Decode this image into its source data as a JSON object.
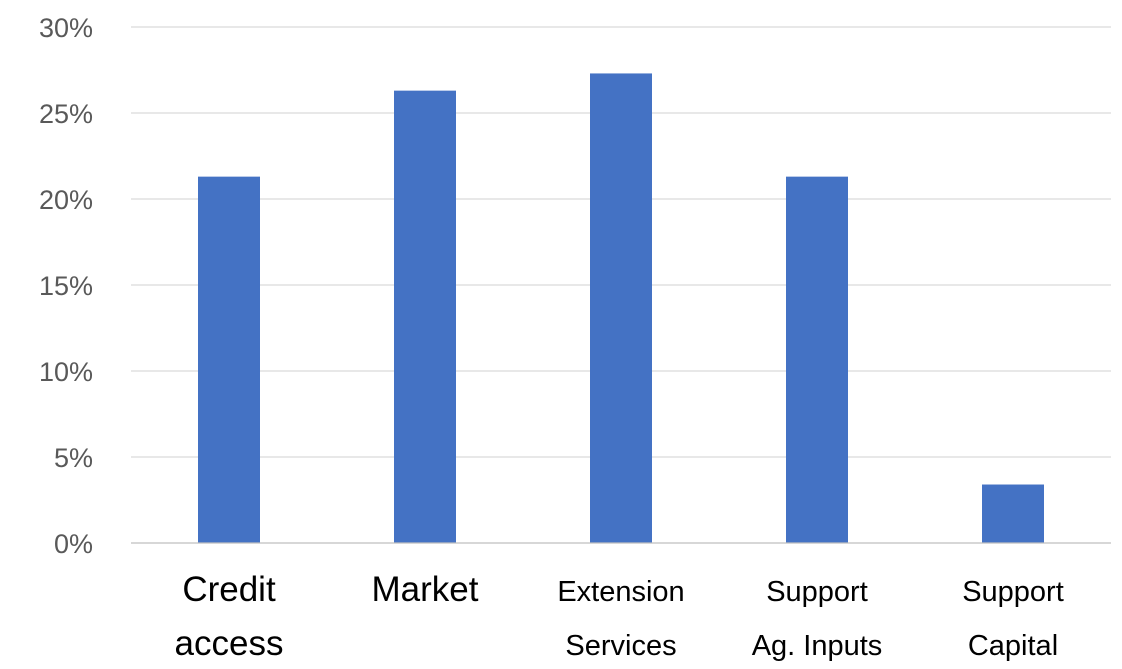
{
  "chart_data": {
    "type": "bar",
    "categories": [
      [
        "Credit",
        "access"
      ],
      [
        "Market"
      ],
      [
        "Extension",
        "Services"
      ],
      [
        "Support",
        "Ag. Inputs"
      ],
      [
        "Support",
        "Capital"
      ]
    ],
    "values": [
      21.3,
      26.3,
      27.3,
      21.3,
      3.4
    ],
    "ylim": [
      0,
      30
    ],
    "yticks": [
      "0%",
      "5%",
      "10%",
      "15%",
      "20%",
      "25%",
      "30%"
    ],
    "ytick_values": [
      0,
      5,
      10,
      15,
      20,
      25,
      30
    ],
    "bar_color": "#4472c4",
    "grid": true,
    "legend": false
  }
}
